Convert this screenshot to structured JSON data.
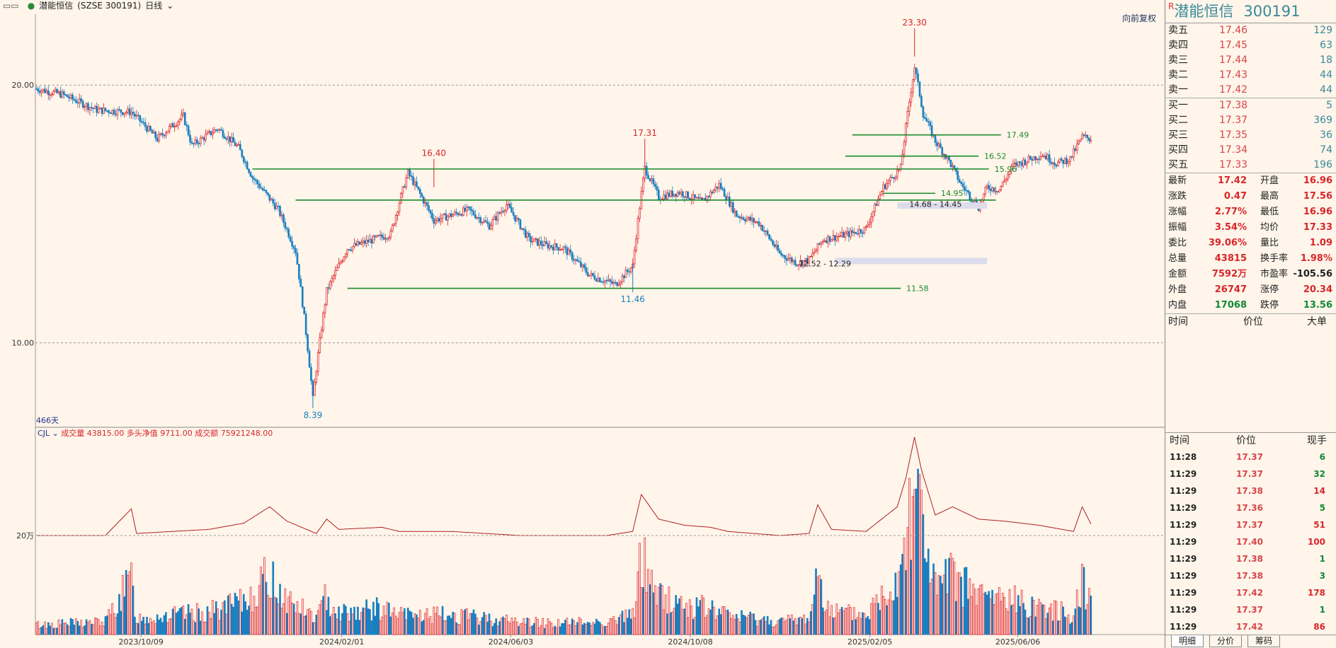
{
  "header": {
    "stock_name": "潜能恒信",
    "market_code": "(SZSE 300191)",
    "period": "日线",
    "restore_label": "向前复权"
  },
  "right_panel": {
    "name": "潜能恒信",
    "code": "300191",
    "r_badge": "R",
    "order_book": {
      "asks": [
        {
          "label": "卖五",
          "price": "17.46",
          "vol": "129"
        },
        {
          "label": "卖四",
          "price": "17.45",
          "vol": "63"
        },
        {
          "label": "卖三",
          "price": "17.44",
          "vol": "18"
        },
        {
          "label": "卖二",
          "price": "17.43",
          "vol": "44"
        },
        {
          "label": "卖一",
          "price": "17.42",
          "vol": "44"
        }
      ],
      "bids": [
        {
          "label": "买一",
          "price": "17.38",
          "vol": "5"
        },
        {
          "label": "买二",
          "price": "17.37",
          "vol": "369"
        },
        {
          "label": "买三",
          "price": "17.35",
          "vol": "36"
        },
        {
          "label": "买四",
          "price": "17.34",
          "vol": "74"
        },
        {
          "label": "买五",
          "price": "17.33",
          "vol": "196"
        }
      ]
    },
    "stats": [
      {
        "l1": "最新",
        "v1": "17.42",
        "c1": "red",
        "l2": "开盘",
        "v2": "16.96",
        "c2": "red"
      },
      {
        "l1": "涨跌",
        "v1": "0.47",
        "c1": "red",
        "l2": "最高",
        "v2": "17.56",
        "c2": "red"
      },
      {
        "l1": "涨幅",
        "v1": "2.77%",
        "c1": "red",
        "l2": "最低",
        "v2": "16.96",
        "c2": "red"
      },
      {
        "l1": "振幅",
        "v1": "3.54%",
        "c1": "red",
        "l2": "均价",
        "v2": "17.33",
        "c2": "red"
      },
      {
        "l1": "委比",
        "v1": "39.06%",
        "c1": "red",
        "l2": "量比",
        "v2": "1.09",
        "c2": "red"
      },
      {
        "l1": "总量",
        "v1": "43815",
        "c1": "red",
        "l2": "换手率",
        "v2": "1.98%",
        "c2": "red"
      },
      {
        "l1": "金额",
        "v1": "7592万",
        "c1": "red",
        "l2": "市盈率",
        "v2": "-105.56",
        "c2": "dark"
      },
      {
        "l1": "外盘",
        "v1": "26747",
        "c1": "red",
        "l2": "涨停",
        "v2": "20.34",
        "c2": "red"
      },
      {
        "l1": "内盘",
        "v1": "17068",
        "c1": "green",
        "l2": "跌停",
        "v2": "13.56",
        "c2": "green"
      }
    ],
    "big_header": {
      "time": "时间",
      "price": "价位",
      "big": "大单"
    },
    "trade_header": {
      "time": "时间",
      "price": "价位",
      "qty": "现手"
    },
    "trades": [
      {
        "t": "11:28",
        "p": "17.37",
        "q": "6",
        "c": "green"
      },
      {
        "t": "11:29",
        "p": "17.37",
        "q": "32",
        "c": "green"
      },
      {
        "t": "11:29",
        "p": "17.38",
        "q": "14",
        "c": "red"
      },
      {
        "t": "11:29",
        "p": "17.36",
        "q": "5",
        "c": "green"
      },
      {
        "t": "11:29",
        "p": "17.37",
        "q": "51",
        "c": "red"
      },
      {
        "t": "11:29",
        "p": "17.40",
        "q": "100",
        "c": "red"
      },
      {
        "t": "11:29",
        "p": "17.38",
        "q": "1",
        "c": "green"
      },
      {
        "t": "11:29",
        "p": "17.38",
        "q": "3",
        "c": "green"
      },
      {
        "t": "11:29",
        "p": "17.42",
        "q": "178",
        "c": "red"
      },
      {
        "t": "11:29",
        "p": "17.37",
        "q": "1",
        "c": "green"
      },
      {
        "t": "11:29",
        "p": "17.42",
        "q": "86",
        "c": "red"
      }
    ],
    "tabs": [
      "明细",
      "分价",
      "筹码"
    ]
  },
  "chart_data": {
    "type": "candlestick",
    "price_axis": {
      "min": 8.0,
      "max": 24.2,
      "ticks": [
        {
          "v": 20.0,
          "label": "20.00"
        },
        {
          "v": 10.0,
          "label": "10.00"
        }
      ],
      "scale": "log"
    },
    "x_labels": [
      "2023/10/09",
      "2024/02/01",
      "2024/06/03",
      "2024/10/08",
      "2025/02/05",
      "2025/06/06"
    ],
    "day_count_label": "466天",
    "price_path": [
      [
        0,
        19.8
      ],
      [
        15,
        19.5
      ],
      [
        35,
        18.7
      ],
      [
        55,
        18.6
      ],
      [
        70,
        17.3
      ],
      [
        85,
        18.4
      ],
      [
        90,
        17.0
      ],
      [
        105,
        17.8
      ],
      [
        117,
        16.9
      ],
      [
        125,
        15.6
      ],
      [
        140,
        14.3
      ],
      [
        150,
        12.8
      ],
      [
        160,
        8.6
      ],
      [
        168,
        11.5
      ],
      [
        180,
        12.9
      ],
      [
        205,
        13.4
      ],
      [
        215,
        15.8
      ],
      [
        230,
        13.9
      ],
      [
        250,
        14.3
      ],
      [
        262,
        13.7
      ],
      [
        272,
        14.5
      ],
      [
        285,
        13.2
      ],
      [
        295,
        13.0
      ],
      [
        305,
        12.9
      ],
      [
        320,
        12.0
      ],
      [
        335,
        11.7
      ],
      [
        345,
        12.3
      ],
      [
        352,
        16.0
      ],
      [
        360,
        14.8
      ],
      [
        372,
        15.0
      ],
      [
        385,
        14.6
      ],
      [
        395,
        15.3
      ],
      [
        405,
        14.1
      ],
      [
        418,
        13.8
      ],
      [
        430,
        12.7
      ],
      [
        440,
        12.4
      ],
      [
        447,
        12.5
      ],
      [
        455,
        13.2
      ],
      [
        470,
        13.4
      ],
      [
        480,
        13.6
      ],
      [
        490,
        15.2
      ],
      [
        500,
        16.0
      ],
      [
        508,
        21.0
      ],
      [
        513,
        18.5
      ],
      [
        520,
        17.2
      ],
      [
        528,
        16.3
      ],
      [
        535,
        15.3
      ],
      [
        545,
        14.4
      ],
      [
        550,
        15.2
      ],
      [
        557,
        15.1
      ],
      [
        565,
        16.1
      ],
      [
        575,
        16.4
      ],
      [
        582,
        16.6
      ],
      [
        590,
        16.2
      ],
      [
        598,
        16.4
      ],
      [
        605,
        17.4
      ],
      [
        611,
        17.3
      ]
    ],
    "volume_axis": {
      "label": "20万",
      "value": 200000
    },
    "volume_path": [
      [
        0,
        0.15
      ],
      [
        40,
        0.2
      ],
      [
        55,
        0.85
      ],
      [
        58,
        0.25
      ],
      [
        100,
        0.35
      ],
      [
        120,
        0.5
      ],
      [
        135,
        0.9
      ],
      [
        145,
        0.55
      ],
      [
        162,
        0.25
      ],
      [
        168,
        0.6
      ],
      [
        175,
        0.35
      ],
      [
        200,
        0.4
      ],
      [
        210,
        0.3
      ],
      [
        225,
        0.3
      ],
      [
        240,
        0.3
      ],
      [
        280,
        0.2
      ],
      [
        300,
        0.18
      ],
      [
        330,
        0.2
      ],
      [
        345,
        0.3
      ],
      [
        350,
        1.2
      ],
      [
        360,
        0.6
      ],
      [
        375,
        0.45
      ],
      [
        390,
        0.4
      ],
      [
        400,
        0.3
      ],
      [
        430,
        0.2
      ],
      [
        447,
        0.25
      ],
      [
        452,
        0.95
      ],
      [
        460,
        0.35
      ],
      [
        480,
        0.3
      ],
      [
        498,
        0.9
      ],
      [
        503,
        1.6
      ],
      [
        508,
        2.6
      ],
      [
        512,
        1.8
      ],
      [
        520,
        0.7
      ],
      [
        530,
        0.9
      ],
      [
        545,
        0.6
      ],
      [
        560,
        0.55
      ],
      [
        580,
        0.45
      ],
      [
        600,
        0.3
      ],
      [
        605,
        0.9
      ],
      [
        611,
        0.4
      ]
    ],
    "volume_values": {
      "volume": "43815.00",
      "net_long": "9711.00",
      "turnover": "75921248.00"
    },
    "volume_legend": {
      "name": "CJL",
      "volume_label": "成交量",
      "net_long_label": "多头净值",
      "turnover_label": "成交额"
    },
    "annotations": [
      {
        "text": "23.30",
        "x_idx": 508,
        "price": 23.3,
        "type": "high"
      },
      {
        "text": "17.31",
        "x_idx": 352,
        "price": 17.31,
        "type": "high"
      },
      {
        "text": "16.40",
        "x_idx": 230,
        "price": 16.4,
        "type": "high"
      },
      {
        "text": "11.46",
        "x_idx": 345,
        "price": 11.46,
        "type": "low"
      },
      {
        "text": "8.39",
        "x_idx": 160,
        "price": 8.39,
        "type": "low"
      }
    ],
    "support_lines": [
      {
        "label": "17.49",
        "price": 17.49,
        "x0": 472,
        "x1": 558
      },
      {
        "label": "16.52",
        "price": 16.52,
        "x0": 468,
        "x1": 545
      },
      {
        "label": "15.96",
        "price": 15.96,
        "x0": 125,
        "x1": 551
      },
      {
        "label": "14.95",
        "price": 14.95,
        "x0": 490,
        "x1": 520
      },
      {
        "label": "11.58",
        "price": 11.58,
        "x0": 180,
        "x1": 500
      }
    ],
    "mid_line_price": 14.68,
    "range_labels": [
      {
        "text": "14.68 - 14.45",
        "x_idx": 505,
        "price": 14.52
      },
      {
        "text": "12.52 - 12.29",
        "x_idx": 441,
        "price": 12.38
      }
    ],
    "bands": [
      {
        "x0": 498,
        "x1": 550,
        "price": 14.45
      },
      {
        "x0": 462,
        "x1": 550,
        "price": 12.45
      }
    ]
  }
}
